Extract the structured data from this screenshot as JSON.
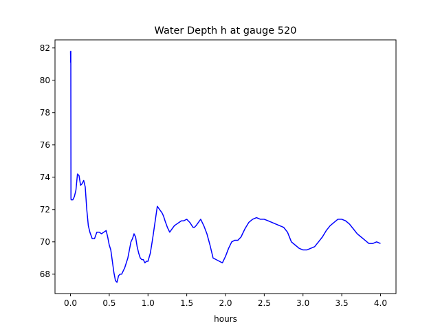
{
  "chart_data": {
    "type": "line",
    "title": "Water Depth h at gauge 520",
    "xlabel": "hours",
    "ylabel": "",
    "xlim": [
      -0.2,
      4.2
    ],
    "ylim": [
      66.8,
      82.5
    ],
    "xticks": [
      0.0,
      0.5,
      1.0,
      1.5,
      2.0,
      2.5,
      3.0,
      3.5,
      4.0
    ],
    "xtick_labels": [
      "0.0",
      "0.5",
      "1.0",
      "1.5",
      "2.0",
      "2.5",
      "3.0",
      "3.5",
      "4.0"
    ],
    "yticks": [
      68,
      70,
      72,
      74,
      76,
      78,
      80,
      82
    ],
    "ytick_labels": [
      "68",
      "70",
      "72",
      "74",
      "76",
      "78",
      "80",
      "82"
    ],
    "grid": false,
    "legend": false,
    "colors": {
      "line": "#0000ff",
      "axes": "#000000",
      "background": "#ffffff"
    },
    "series": [
      {
        "x": [
          0.0,
          0.002,
          0.004,
          0.006,
          0.008,
          0.01,
          0.03,
          0.05,
          0.07,
          0.09,
          0.11,
          0.13,
          0.15,
          0.17,
          0.19,
          0.21,
          0.23,
          0.25,
          0.28,
          0.31,
          0.34,
          0.37,
          0.4,
          0.43,
          0.46,
          0.48,
          0.5,
          0.52,
          0.54,
          0.56,
          0.58,
          0.6,
          0.62,
          0.64,
          0.66,
          0.7,
          0.74,
          0.78,
          0.8,
          0.82,
          0.84,
          0.86,
          0.88,
          0.9,
          0.92,
          0.94,
          0.96,
          0.98,
          1.0,
          1.03,
          1.06,
          1.09,
          1.12,
          1.15,
          1.18,
          1.2,
          1.22,
          1.25,
          1.28,
          1.31,
          1.34,
          1.37,
          1.4,
          1.43,
          1.46,
          1.5,
          1.54,
          1.58,
          1.6,
          1.62,
          1.65,
          1.68,
          1.72,
          1.76,
          1.8,
          1.84,
          1.88,
          1.92,
          1.96,
          2.0,
          2.04,
          2.08,
          2.12,
          2.16,
          2.2,
          2.25,
          2.3,
          2.35,
          2.4,
          2.45,
          2.5,
          2.55,
          2.6,
          2.65,
          2.7,
          2.75,
          2.8,
          2.85,
          2.9,
          2.95,
          3.0,
          3.05,
          3.1,
          3.15,
          3.2,
          3.25,
          3.3,
          3.35,
          3.4,
          3.45,
          3.5,
          3.55,
          3.6,
          3.65,
          3.7,
          3.75,
          3.8,
          3.85,
          3.9,
          3.95,
          4.0
        ],
        "y": [
          81.8,
          81.1,
          81.8,
          72.7,
          72.6,
          72.6,
          72.6,
          72.8,
          73.2,
          74.2,
          74.1,
          73.5,
          73.6,
          73.8,
          73.4,
          72.0,
          71.0,
          70.6,
          70.2,
          70.2,
          70.6,
          70.6,
          70.5,
          70.6,
          70.7,
          70.3,
          69.8,
          69.5,
          68.8,
          68.1,
          67.6,
          67.5,
          67.9,
          68.0,
          68.0,
          68.4,
          69.0,
          70.0,
          70.2,
          70.5,
          70.3,
          69.7,
          69.3,
          69.0,
          68.9,
          68.9,
          68.7,
          68.8,
          68.8,
          69.3,
          70.2,
          71.2,
          72.2,
          72.0,
          71.8,
          71.6,
          71.3,
          70.9,
          70.6,
          70.8,
          71.0,
          71.1,
          71.2,
          71.3,
          71.3,
          71.4,
          71.2,
          70.9,
          70.9,
          71.0,
          71.2,
          71.4,
          71.0,
          70.5,
          69.8,
          69.0,
          68.9,
          68.8,
          68.7,
          69.1,
          69.6,
          70.0,
          70.1,
          70.1,
          70.3,
          70.8,
          71.2,
          71.4,
          71.5,
          71.4,
          71.4,
          71.3,
          71.2,
          71.1,
          71.0,
          70.9,
          70.6,
          70.0,
          69.8,
          69.6,
          69.5,
          69.5,
          69.6,
          69.7,
          70.0,
          70.3,
          70.7,
          71.0,
          71.2,
          71.4,
          71.4,
          71.3,
          71.1,
          70.8,
          70.5,
          70.3,
          70.1,
          69.9,
          69.9,
          70.0,
          69.9
        ]
      }
    ]
  }
}
